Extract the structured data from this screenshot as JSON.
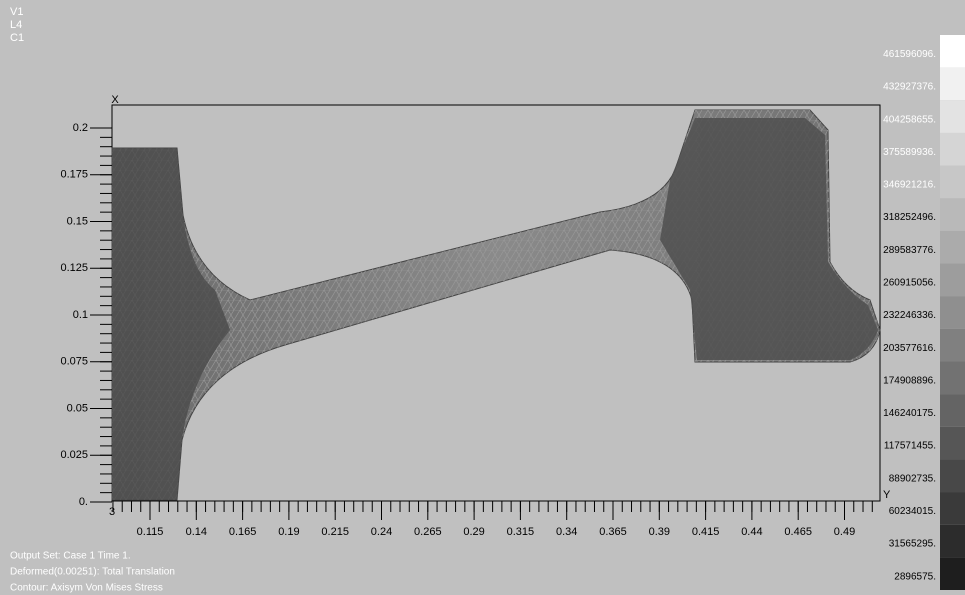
{
  "view_labels": [
    "V1",
    "L4",
    "C1"
  ],
  "axes": {
    "x_marker": "X",
    "y_marker": "Y",
    "origin_label": "3",
    "y_labels": [
      "0.2",
      "0.175",
      "0.15",
      "0.125",
      "0.1",
      "0.075",
      "0.05",
      "0.025",
      "0."
    ],
    "x_labels": [
      "0.115",
      "0.14",
      "0.165",
      "0.19",
      "0.215",
      "0.24",
      "0.265",
      "0.29",
      "0.315",
      "0.34",
      "0.365",
      "0.39",
      "0.415",
      "0.44",
      "0.465",
      "0.49"
    ]
  },
  "legend": [
    "461596096.",
    "432927376.",
    "404258655.",
    "375589936.",
    "346921216.",
    "318252496.",
    "289583776.",
    "260915056.",
    "232246336.",
    "203577616.",
    "174908896.",
    "146240175.",
    "117571455.",
    "88902735.",
    "60234015.",
    "31565295.",
    "2896575."
  ],
  "footer": [
    "Output Set: Case 1 Time 1.",
    "Deformed(0.00251): Total Translation",
    "Contour: Axisym Von Mises Stress"
  ]
}
